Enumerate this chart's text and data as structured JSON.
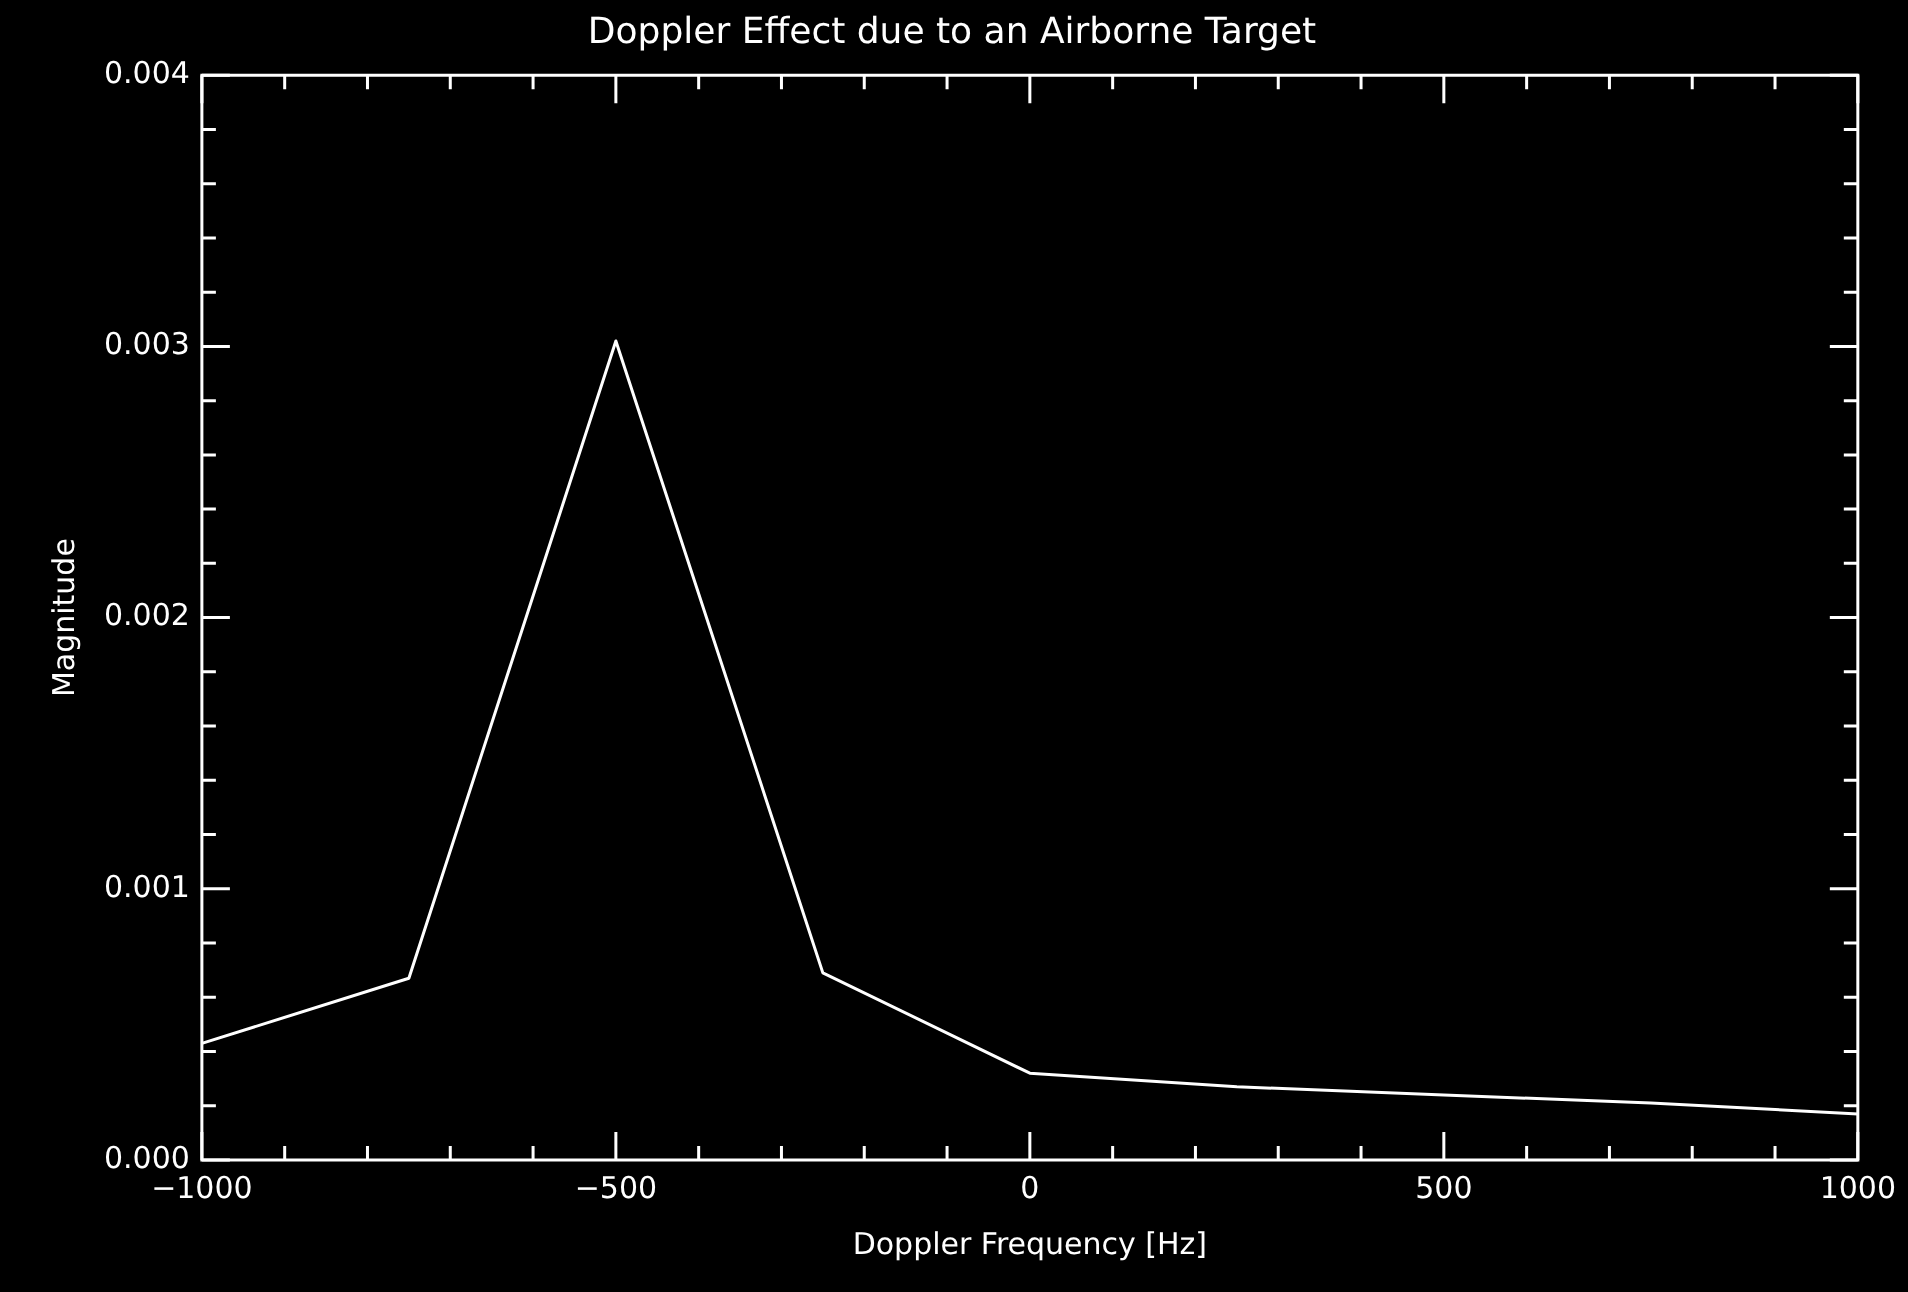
{
  "chart_data": {
    "type": "line",
    "title": "Doppler Effect due to an Airborne Target",
    "xlabel": "Doppler Frequency [Hz]",
    "ylabel": "Magnitude",
    "x": [
      -1000,
      -750,
      -500,
      -250,
      0,
      250,
      500,
      750,
      1000
    ],
    "series": [
      {
        "color": "#ffffff",
        "values": [
          0.00043,
          0.00067,
          0.00302,
          0.00069,
          0.00032,
          0.00027,
          0.00024,
          0.00021,
          0.00017
        ]
      }
    ],
    "xlim": [
      -1000,
      1000
    ],
    "xticks": [
      -1000,
      {
        "value": -900,
        "label": null
      },
      {
        "value": -800,
        "label": null
      },
      {
        "value": -700,
        "label": null
      },
      {
        "value": -600,
        "label": null
      },
      -500,
      {
        "value": -400,
        "label": null
      },
      {
        "value": -300,
        "label": null
      },
      {
        "value": -200,
        "label": null
      },
      {
        "value": -100,
        "label": null
      },
      0,
      {
        "value": 100,
        "label": null
      },
      {
        "value": 200,
        "label": null
      },
      {
        "value": 300,
        "label": null
      },
      {
        "value": 400,
        "label": null
      },
      500,
      {
        "value": 600,
        "label": null
      },
      {
        "value": 700,
        "label": null
      },
      {
        "value": 800,
        "label": null
      },
      {
        "value": 900,
        "label": null
      },
      1000
    ],
    "ylim": [
      0,
      0.004
    ],
    "yticks": [
      {
        "value": 0,
        "label": "0.000"
      },
      {
        "value": 0.0002,
        "label": null
      },
      {
        "value": 0.0004,
        "label": null
      },
      {
        "value": 0.0006,
        "label": null
      },
      {
        "value": 0.0008,
        "label": null
      },
      {
        "value": 0.001,
        "label": "0.001"
      },
      {
        "value": 0.0012,
        "label": null
      },
      {
        "value": 0.0014,
        "label": null
      },
      {
        "value": 0.0016,
        "label": null
      },
      {
        "value": 0.0018,
        "label": null
      },
      {
        "value": 0.002,
        "label": "0.002"
      },
      {
        "value": 0.0022,
        "label": null
      },
      {
        "value": 0.0024,
        "label": null
      },
      {
        "value": 0.0026,
        "label": null
      },
      {
        "value": 0.0028,
        "label": null
      },
      {
        "value": 0.003,
        "label": "0.003"
      },
      {
        "value": 0.0032,
        "label": null
      },
      {
        "value": 0.0034,
        "label": null
      },
      {
        "value": 0.0036,
        "label": null
      },
      {
        "value": 0.0038,
        "label": null
      },
      {
        "value": 0.004,
        "label": "0.004"
      }
    ],
    "grid": false,
    "legend": false,
    "marker": "none",
    "line_style": "solid"
  }
}
